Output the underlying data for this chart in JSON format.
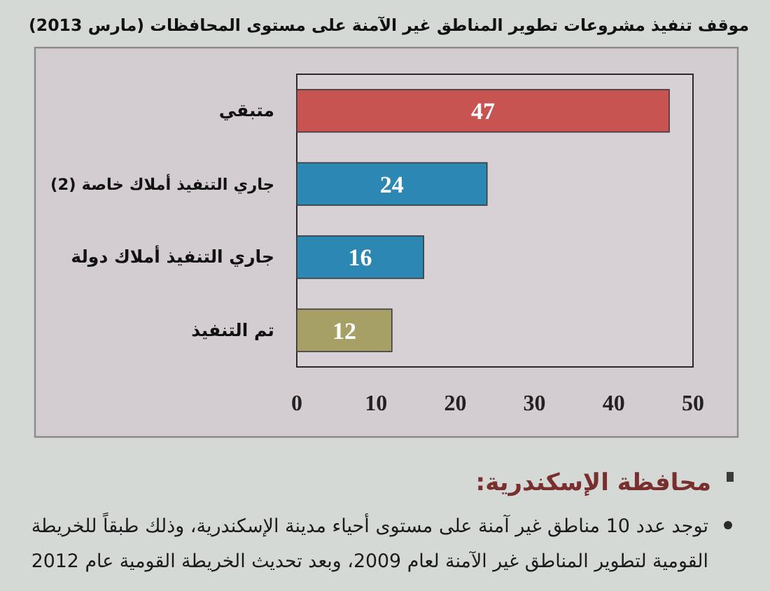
{
  "chart_data": {
    "type": "bar",
    "orientation": "horizontal",
    "title": "موقف تنفيذ مشروعات تطوير المناطق غير الآمنة على مستوى المحافظات (مارس 2013)",
    "categories": [
      "متبقي",
      "جاري التنفيذ أملاك خاصة (2)",
      "جاري التنفيذ أملاك دولة",
      "تم التنفيذ"
    ],
    "values": [
      47,
      24,
      16,
      12
    ],
    "colors": [
      "#c85451",
      "#2d87b3",
      "#2d87b3",
      "#a6a067"
    ],
    "xlim": [
      0,
      50
    ],
    "xticks": [
      0,
      10,
      20,
      30,
      40,
      50
    ],
    "data_labels": true,
    "annotations": [
      "محافظة الإسكندرية:",
      "توجد عدد 10 مناطق غير آمنة على مستوى أحياء مدينة الإسكندرية، وذلك طبقاً للخريطة",
      "القومية لتطوير المناطق غير الآمنة لعام 2009، وبعد تحديث الخريطة القومية عام 2012"
    ]
  }
}
